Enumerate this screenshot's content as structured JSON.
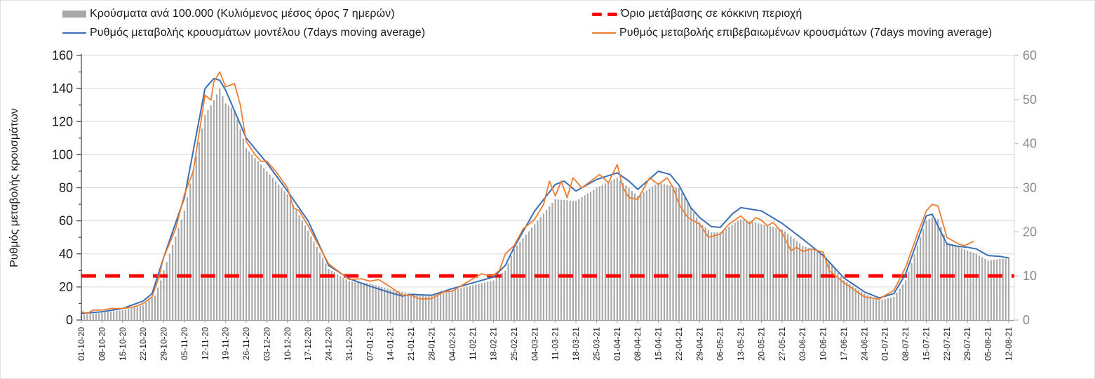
{
  "figure": {
    "legend": {
      "items": [
        {
          "id": "cases",
          "label": "Κρούσματα ανά 100.000 (Κυλιόμενος μέσος όρος 7 ημερών)",
          "swatch": "bar",
          "color": "#a8a8a8"
        },
        {
          "id": "threshold",
          "label": "Όριο μετάβασης σε κόκκινη περιοχή",
          "swatch": "dash",
          "color": "#ff0000"
        },
        {
          "id": "model",
          "label": "Ρυθμός μεταβολής κρουσμάτων μοντέλου (7days moving average)",
          "swatch": "line",
          "color": "#3a6eb5"
        },
        {
          "id": "confirmed",
          "label": "Ρυθμός μεταβολής επιβεβαιωμένων κρουσμάτων (7days moving average)",
          "swatch": "line",
          "color": "#ed7d31"
        }
      ]
    }
  },
  "chart_data": {
    "type": "bar+line",
    "title": "",
    "left_axis": {
      "label": "Ρυθμός μεταβολής κρουσμάτων",
      "min": 0,
      "max": 160,
      "step": 20,
      "tick_color": "#1a1a1a"
    },
    "right_axis": {
      "min": 0,
      "max": 60,
      "step": 10,
      "tick_color": "#8c8c8c"
    },
    "x_axis": {
      "days_span": 315,
      "tick_every_days": 7,
      "tick_labels": [
        "01-10-20",
        "08-10-20",
        "15-10-20",
        "22-10-20",
        "29-10-20",
        "05-11-20",
        "12-11-20",
        "19-11-20",
        "26-11-20",
        "03-12-20",
        "10-12-20",
        "17-12-20",
        "24-12-20",
        "31-12-20",
        "07-01-21",
        "14-01-21",
        "21-01-21",
        "28-01-21",
        "04-02-21",
        "11-02-21",
        "18-02-21",
        "25-02-21",
        "04-03-21",
        "11-03-21",
        "18-03-21",
        "25-03-21",
        "01-04-21",
        "08-04-21",
        "15-04-21",
        "22-04-21",
        "29-04-21",
        "06-05-21",
        "13-05-21",
        "20-05-21",
        "27-05-21",
        "03-06-21",
        "10-06-21",
        "17-06-21",
        "24-06-21",
        "01-07-21",
        "08-07-21",
        "15-07-21",
        "22-07-21",
        "29-07-21",
        "05-08-21",
        "12-08-21"
      ]
    },
    "threshold": {
      "name": "Όριο μετάβασης σε κόκκινη περιοχή",
      "value_right_axis": 10,
      "value_left_axis": 26.7,
      "color": "#ff0000",
      "dash": [
        21,
        13
      ],
      "width": 5
    },
    "grid": {
      "horizontal": true,
      "color": "#d9d9d9"
    },
    "series": [
      {
        "name": "Κρούσματα ανά 100.000 (Κυλιόμενος μέσος όρος 7 ημερών)",
        "type": "bar",
        "axis": "left",
        "color": "#a9a9a9",
        "points": [
          [
            0,
            3
          ],
          [
            7,
            4.5
          ],
          [
            14,
            6
          ],
          [
            21,
            9
          ],
          [
            25,
            15
          ],
          [
            27,
            24
          ],
          [
            28,
            30
          ],
          [
            35,
            66
          ],
          [
            42,
            124
          ],
          [
            45,
            133
          ],
          [
            47,
            140
          ],
          [
            49,
            131
          ],
          [
            52,
            127
          ],
          [
            56,
            104
          ],
          [
            63,
            90
          ],
          [
            70,
            76
          ],
          [
            77,
            54
          ],
          [
            84,
            31
          ],
          [
            91,
            23.5
          ],
          [
            98,
            22
          ],
          [
            105,
            18.5
          ],
          [
            112,
            16
          ],
          [
            119,
            15
          ],
          [
            126,
            18
          ],
          [
            133,
            21
          ],
          [
            140,
            24
          ],
          [
            144,
            30
          ],
          [
            147,
            43
          ],
          [
            154,
            58
          ],
          [
            161,
            73
          ],
          [
            168,
            72
          ],
          [
            175,
            80
          ],
          [
            182,
            86
          ],
          [
            189,
            75
          ],
          [
            196,
            83
          ],
          [
            203,
            80
          ],
          [
            207,
            68
          ],
          [
            210,
            59
          ],
          [
            214,
            53
          ],
          [
            217,
            53
          ],
          [
            224,
            61
          ],
          [
            231,
            58
          ],
          [
            238,
            55
          ],
          [
            245,
            45
          ],
          [
            252,
            40
          ],
          [
            259,
            24
          ],
          [
            266,
            16
          ],
          [
            271,
            12
          ],
          [
            276,
            14
          ],
          [
            280,
            24
          ],
          [
            284,
            45
          ],
          [
            287,
            60
          ],
          [
            289,
            62
          ],
          [
            291,
            61
          ],
          [
            294,
            47
          ],
          [
            298,
            44
          ],
          [
            301,
            42
          ],
          [
            304,
            40
          ],
          [
            308,
            36
          ],
          [
            312,
            37
          ],
          [
            315,
            37
          ]
        ]
      },
      {
        "name": "Ρυθμός μεταβολής κρουσμάτων μοντέλου (7days moving average)",
        "type": "line",
        "axis": "left",
        "color": "#3a6eb5",
        "width": 2,
        "points": [
          [
            0,
            4
          ],
          [
            7,
            5
          ],
          [
            14,
            7
          ],
          [
            21,
            11.5
          ],
          [
            24,
            16
          ],
          [
            26,
            27
          ],
          [
            28,
            38
          ],
          [
            35,
            74
          ],
          [
            42,
            140
          ],
          [
            45,
            146
          ],
          [
            47,
            145
          ],
          [
            49,
            139
          ],
          [
            56,
            110
          ],
          [
            63,
            95
          ],
          [
            70,
            78
          ],
          [
            77,
            60
          ],
          [
            84,
            33
          ],
          [
            91,
            25
          ],
          [
            98,
            20.5
          ],
          [
            105,
            16.5
          ],
          [
            109,
            14.5
          ],
          [
            112,
            15.5
          ],
          [
            119,
            15
          ],
          [
            126,
            19
          ],
          [
            133,
            22.5
          ],
          [
            140,
            26
          ],
          [
            144,
            33
          ],
          [
            147,
            44
          ],
          [
            154,
            66
          ],
          [
            161,
            82
          ],
          [
            164,
            84
          ],
          [
            168,
            78
          ],
          [
            175,
            85
          ],
          [
            182,
            89
          ],
          [
            186,
            84
          ],
          [
            189,
            79
          ],
          [
            196,
            90
          ],
          [
            200,
            88
          ],
          [
            203,
            81.5
          ],
          [
            207,
            68
          ],
          [
            210,
            62
          ],
          [
            214,
            56.5
          ],
          [
            217,
            56
          ],
          [
            221,
            64
          ],
          [
            224,
            68
          ],
          [
            231,
            66
          ],
          [
            238,
            58.5
          ],
          [
            245,
            49
          ],
          [
            252,
            39
          ],
          [
            259,
            25.5
          ],
          [
            266,
            17
          ],
          [
            271,
            13.4
          ],
          [
            276,
            16
          ],
          [
            280,
            28
          ],
          [
            284,
            48
          ],
          [
            287,
            63
          ],
          [
            289,
            64
          ],
          [
            294,
            46
          ],
          [
            298,
            44.5
          ],
          [
            301,
            44
          ],
          [
            304,
            43
          ],
          [
            308,
            39
          ],
          [
            312,
            38.5
          ],
          [
            315,
            37.5
          ]
        ]
      },
      {
        "name": "Ρυθμός μεταβολής επιβεβαιωμένων κρουσμάτων (7days moving average)",
        "type": "line",
        "axis": "left",
        "color": "#ed7d31",
        "width": 1.8,
        "points": [
          [
            0,
            5
          ],
          [
            2,
            4
          ],
          [
            4,
            6
          ],
          [
            7,
            6
          ],
          [
            10,
            7
          ],
          [
            14,
            7
          ],
          [
            18,
            8
          ],
          [
            21,
            10
          ],
          [
            24,
            14
          ],
          [
            26,
            24
          ],
          [
            28,
            38
          ],
          [
            32,
            55
          ],
          [
            35,
            76
          ],
          [
            38,
            90
          ],
          [
            42,
            136
          ],
          [
            44,
            133
          ],
          [
            45,
            144
          ],
          [
            47,
            150
          ],
          [
            49,
            141
          ],
          [
            52,
            143
          ],
          [
            54,
            130
          ],
          [
            56,
            108
          ],
          [
            59,
            100
          ],
          [
            61,
            96
          ],
          [
            63,
            96
          ],
          [
            66,
            90
          ],
          [
            70,
            80
          ],
          [
            72,
            68
          ],
          [
            74,
            66
          ],
          [
            77,
            57
          ],
          [
            84,
            34
          ],
          [
            91,
            24.5
          ],
          [
            95,
            25
          ],
          [
            98,
            23.5
          ],
          [
            101,
            24.5
          ],
          [
            105,
            20
          ],
          [
            109,
            15
          ],
          [
            112,
            15
          ],
          [
            115,
            12.7
          ],
          [
            119,
            13
          ],
          [
            123,
            17
          ],
          [
            126,
            17.5
          ],
          [
            133,
            25
          ],
          [
            136,
            28
          ],
          [
            138,
            27
          ],
          [
            140,
            27
          ],
          [
            142,
            30
          ],
          [
            144,
            40
          ],
          [
            147,
            45
          ],
          [
            150,
            55
          ],
          [
            154,
            61
          ],
          [
            157,
            70
          ],
          [
            159,
            84
          ],
          [
            161,
            75
          ],
          [
            163,
            84
          ],
          [
            165,
            74
          ],
          [
            167,
            86
          ],
          [
            170,
            80
          ],
          [
            173,
            84
          ],
          [
            176,
            88
          ],
          [
            179,
            83
          ],
          [
            182,
            94
          ],
          [
            184,
            80
          ],
          [
            186,
            74
          ],
          [
            189,
            73
          ],
          [
            193,
            86
          ],
          [
            196,
            82
          ],
          [
            199,
            86
          ],
          [
            201,
            80
          ],
          [
            203,
            70
          ],
          [
            206,
            62
          ],
          [
            210,
            58
          ],
          [
            213,
            50
          ],
          [
            217,
            52
          ],
          [
            220,
            58
          ],
          [
            224,
            63
          ],
          [
            227,
            58
          ],
          [
            229,
            62
          ],
          [
            231,
            60.5
          ],
          [
            233,
            57
          ],
          [
            235,
            59
          ],
          [
            238,
            53
          ],
          [
            241,
            42
          ],
          [
            243,
            44
          ],
          [
            245,
            41.5
          ],
          [
            248,
            43
          ],
          [
            250,
            42
          ],
          [
            252,
            41
          ],
          [
            254,
            30
          ],
          [
            259,
            22.6
          ],
          [
            266,
            14
          ],
          [
            271,
            12.7
          ],
          [
            276,
            18
          ],
          [
            280,
            32
          ],
          [
            284,
            52
          ],
          [
            287,
            66
          ],
          [
            289,
            70
          ],
          [
            291,
            69
          ],
          [
            294,
            50
          ],
          [
            296,
            48
          ],
          [
            298,
            46
          ],
          [
            300,
            45
          ],
          [
            303,
            47.5
          ]
        ]
      }
    ]
  }
}
